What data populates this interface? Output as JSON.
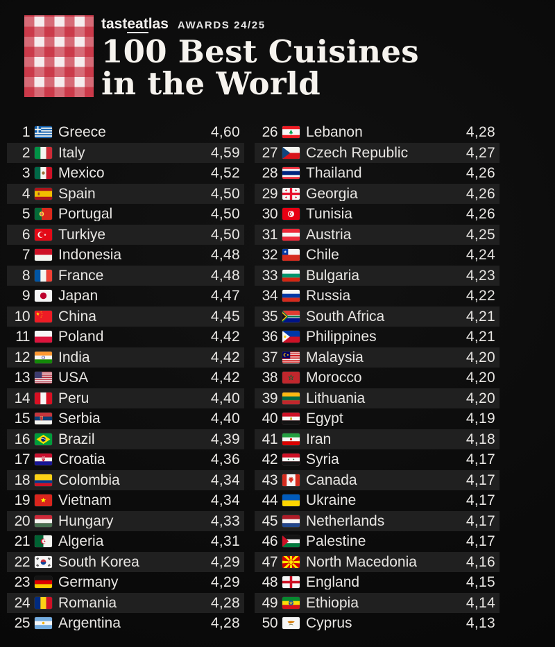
{
  "header": {
    "logo_icon": "gingham-checkered-pattern",
    "logo_red": "#c41c2e",
    "brand": {
      "pre": "tast",
      "underlined": "eat",
      "post": "las"
    },
    "awards_label": "AWARDS 24/25",
    "title_line1": "100 Best Cuisines",
    "title_line2": "in the World"
  },
  "colors": {
    "background": "#0b0b0b",
    "row_stripe": "#202020",
    "text": "#e8e6e3"
  },
  "list": {
    "columns": [
      {
        "entries": [
          {
            "rank": "1",
            "country": "Greece",
            "flag": "gr",
            "score": "4,60"
          },
          {
            "rank": "2",
            "country": "Italy",
            "flag": "it",
            "score": "4,59"
          },
          {
            "rank": "3",
            "country": "Mexico",
            "flag": "mx",
            "score": "4,52"
          },
          {
            "rank": "4",
            "country": "Spain",
            "flag": "es",
            "score": "4,50"
          },
          {
            "rank": "5",
            "country": "Portugal",
            "flag": "pt",
            "score": "4,50"
          },
          {
            "rank": "6",
            "country": "Turkiye",
            "flag": "tr",
            "score": "4,50"
          },
          {
            "rank": "7",
            "country": "Indonesia",
            "flag": "id",
            "score": "4,48"
          },
          {
            "rank": "8",
            "country": "France",
            "flag": "fr",
            "score": "4,48"
          },
          {
            "rank": "9",
            "country": "Japan",
            "flag": "jp",
            "score": "4,47"
          },
          {
            "rank": "10",
            "country": "China",
            "flag": "cn",
            "score": "4,45"
          },
          {
            "rank": "11",
            "country": "Poland",
            "flag": "pl",
            "score": "4,42"
          },
          {
            "rank": "12",
            "country": "India",
            "flag": "in",
            "score": "4,42"
          },
          {
            "rank": "13",
            "country": "USA",
            "flag": "us",
            "score": "4,42"
          },
          {
            "rank": "14",
            "country": "Peru",
            "flag": "pe",
            "score": "4,40"
          },
          {
            "rank": "15",
            "country": "Serbia",
            "flag": "rs",
            "score": "4,40"
          },
          {
            "rank": "16",
            "country": "Brazil",
            "flag": "br",
            "score": "4,39"
          },
          {
            "rank": "17",
            "country": "Croatia",
            "flag": "hr",
            "score": "4,36"
          },
          {
            "rank": "18",
            "country": "Colombia",
            "flag": "co",
            "score": "4,34"
          },
          {
            "rank": "19",
            "country": "Vietnam",
            "flag": "vn",
            "score": "4,34"
          },
          {
            "rank": "20",
            "country": "Hungary",
            "flag": "hu",
            "score": "4,33"
          },
          {
            "rank": "21",
            "country": "Algeria",
            "flag": "dz",
            "score": "4,31"
          },
          {
            "rank": "22",
            "country": "South Korea",
            "flag": "kr",
            "score": "4,29"
          },
          {
            "rank": "23",
            "country": "Germany",
            "flag": "de",
            "score": "4,29"
          },
          {
            "rank": "24",
            "country": "Romania",
            "flag": "ro",
            "score": "4,28"
          },
          {
            "rank": "25",
            "country": "Argentina",
            "flag": "ar",
            "score": "4,28"
          }
        ]
      },
      {
        "entries": [
          {
            "rank": "26",
            "country": "Lebanon",
            "flag": "lb",
            "score": "4,28"
          },
          {
            "rank": "27",
            "country": "Czech Republic",
            "flag": "cz",
            "score": "4,27"
          },
          {
            "rank": "28",
            "country": "Thailand",
            "flag": "th",
            "score": "4,26"
          },
          {
            "rank": "29",
            "country": "Georgia",
            "flag": "ge",
            "score": "4,26"
          },
          {
            "rank": "30",
            "country": "Tunisia",
            "flag": "tn",
            "score": "4,26"
          },
          {
            "rank": "31",
            "country": "Austria",
            "flag": "at",
            "score": "4,25"
          },
          {
            "rank": "32",
            "country": "Chile",
            "flag": "cl",
            "score": "4,24"
          },
          {
            "rank": "33",
            "country": "Bulgaria",
            "flag": "bg",
            "score": "4,23"
          },
          {
            "rank": "34",
            "country": "Russia",
            "flag": "ru",
            "score": "4,22"
          },
          {
            "rank": "35",
            "country": "South Africa",
            "flag": "za",
            "score": "4,21"
          },
          {
            "rank": "36",
            "country": "Philippines",
            "flag": "ph",
            "score": "4,21"
          },
          {
            "rank": "37",
            "country": "Malaysia",
            "flag": "my",
            "score": "4,20"
          },
          {
            "rank": "38",
            "country": "Morocco",
            "flag": "ma",
            "score": "4,20"
          },
          {
            "rank": "39",
            "country": "Lithuania",
            "flag": "lt",
            "score": "4,20"
          },
          {
            "rank": "40",
            "country": "Egypt",
            "flag": "eg",
            "score": "4,19"
          },
          {
            "rank": "41",
            "country": "Iran",
            "flag": "ir",
            "score": "4,18"
          },
          {
            "rank": "42",
            "country": "Syria",
            "flag": "sy",
            "score": "4,17"
          },
          {
            "rank": "43",
            "country": "Canada",
            "flag": "ca",
            "score": "4,17"
          },
          {
            "rank": "44",
            "country": "Ukraine",
            "flag": "ua",
            "score": "4,17"
          },
          {
            "rank": "45",
            "country": "Netherlands",
            "flag": "nl",
            "score": "4,17"
          },
          {
            "rank": "46",
            "country": "Palestine",
            "flag": "ps",
            "score": "4,17"
          },
          {
            "rank": "47",
            "country": "North Macedonia",
            "flag": "mk",
            "score": "4,16"
          },
          {
            "rank": "48",
            "country": "England",
            "flag": "gbeng",
            "score": "4,15"
          },
          {
            "rank": "49",
            "country": "Ethiopia",
            "flag": "et",
            "score": "4,14"
          },
          {
            "rank": "50",
            "country": "Cyprus",
            "flag": "cy",
            "score": "4,13"
          }
        ]
      }
    ]
  }
}
